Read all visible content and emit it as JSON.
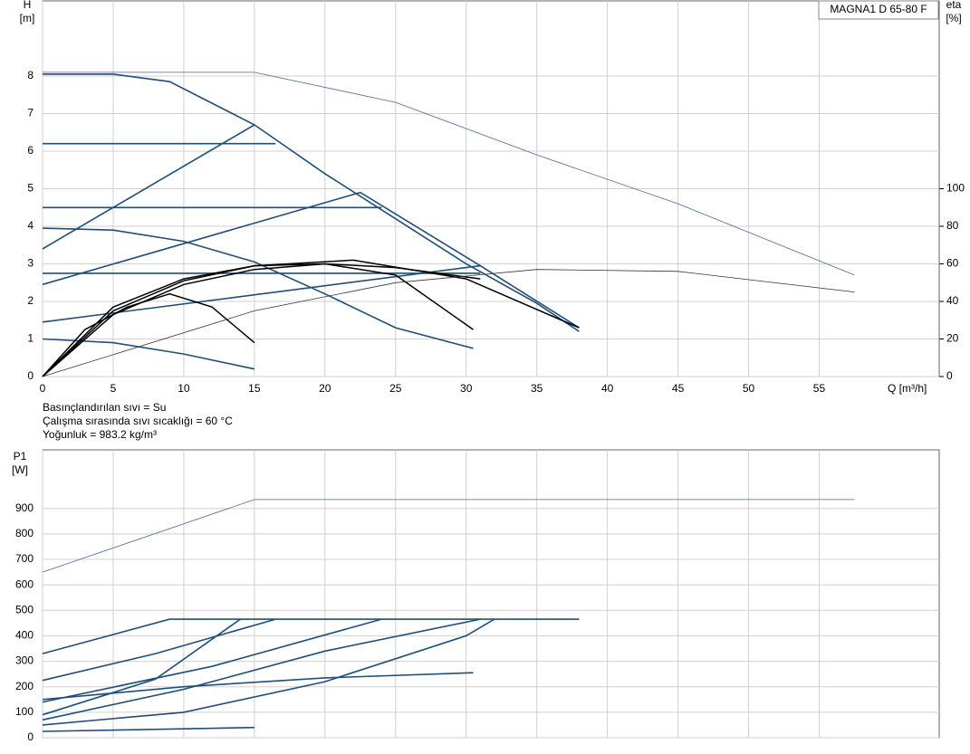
{
  "chart_data": [
    {
      "type": "line",
      "annotation": "MAGNA1 D 65-80 F",
      "y_label": "H",
      "y_unit": "[m]",
      "y2_label": "eta",
      "y2_unit": "[%]",
      "x_label": "Q [m³/h]",
      "notes": [
        "Basınçlandırılan sıvı = Su",
        "Çalışma sırasında sıvı sıcaklığı = 60 °C",
        "Yoğunluk = 983.2 kg/m³"
      ],
      "xlim": [
        0,
        63.5
      ],
      "ylim": [
        0,
        10
      ],
      "y2lim": [
        0,
        200
      ],
      "xticks": [
        0,
        5,
        10,
        15,
        20,
        25,
        30,
        35,
        40,
        45,
        50,
        55
      ],
      "yticks": [
        0,
        1,
        2,
        3,
        4,
        5,
        6,
        7,
        8
      ],
      "y2ticks": [
        0,
        20,
        40,
        60,
        80,
        100
      ],
      "grid": true,
      "series": [
        {
          "color": "#1f4e79",
          "width": 1.6,
          "x": [
            0,
            5,
            9,
            15,
            20,
            25,
            30,
            35,
            38
          ],
          "values": [
            8.05,
            8.05,
            7.85,
            6.7,
            5.4,
            4.2,
            3.0,
            1.95,
            1.2
          ]
        },
        {
          "color": "#1f4e79",
          "width": 1.6,
          "x": [
            0,
            16.5
          ],
          "values": [
            6.2,
            6.2
          ]
        },
        {
          "color": "#1f4e79",
          "width": 1.6,
          "x": [
            0,
            24
          ],
          "values": [
            4.5,
            4.5
          ]
        },
        {
          "color": "#1f4e79",
          "width": 1.6,
          "x": [
            0,
            31
          ],
          "values": [
            2.75,
            2.75
          ]
        },
        {
          "color": "#1f4e79",
          "width": 1.6,
          "x": [
            0,
            15
          ],
          "values": [
            3.4,
            6.7
          ]
        },
        {
          "color": "#1f4e79",
          "width": 1.6,
          "x": [
            0,
            22.5,
            31,
            38
          ],
          "values": [
            2.45,
            4.9,
            2.95,
            1.3
          ]
        },
        {
          "color": "#1f4e79",
          "width": 1.6,
          "x": [
            0,
            31
          ],
          "values": [
            1.45,
            2.95
          ]
        },
        {
          "color": "#1f4e79",
          "width": 1.6,
          "x": [
            0,
            5,
            10,
            15,
            20,
            25,
            30.5
          ],
          "values": [
            3.95,
            3.9,
            3.6,
            3.05,
            2.2,
            1.3,
            0.75
          ]
        },
        {
          "color": "#1f4e79",
          "width": 1.6,
          "x": [
            0,
            5,
            10,
            15
          ],
          "values": [
            1.0,
            0.9,
            0.6,
            0.2
          ]
        },
        {
          "color": "#4a6a9a",
          "width": 0.8,
          "x": [
            0,
            15,
            25,
            35,
            45,
            57.5
          ],
          "values": [
            8.1,
            8.1,
            7.3,
            5.9,
            4.6,
            2.7
          ]
        },
        {
          "color": "#000000",
          "width": 1.5,
          "axis": "y2",
          "x": [
            0,
            3,
            6,
            9,
            12,
            15
          ],
          "values": [
            0,
            25,
            37,
            44,
            37,
            18
          ]
        },
        {
          "color": "#000000",
          "width": 1.5,
          "axis": "y2",
          "x": [
            0,
            5,
            10,
            15,
            20,
            25,
            30.5
          ],
          "values": [
            0,
            37,
            52,
            59,
            60,
            54,
            25
          ]
        },
        {
          "color": "#000000",
          "width": 1.5,
          "axis": "y2",
          "x": [
            0,
            5,
            10,
            15,
            22,
            30,
            38
          ],
          "values": [
            0,
            35,
            51,
            59,
            62,
            52,
            26
          ]
        },
        {
          "color": "#000000",
          "width": 1.5,
          "axis": "y2",
          "x": [
            0,
            5,
            10,
            15,
            20,
            25,
            31
          ],
          "values": [
            0,
            33,
            49,
            57,
            60,
            58,
            52
          ]
        },
        {
          "color": "#333333",
          "width": 0.8,
          "axis": "y2",
          "x": [
            0,
            15,
            25,
            35,
            45,
            57.5
          ],
          "values": [
            0,
            35,
            50,
            57,
            56,
            45
          ]
        }
      ]
    },
    {
      "type": "line",
      "y_label": "P1",
      "y_unit": "[W]",
      "xlim": [
        0,
        63.5
      ],
      "ylim": [
        0,
        1130
      ],
      "xgrid": [
        0,
        5,
        10,
        15,
        20,
        25,
        30,
        35,
        40,
        45,
        50,
        55
      ],
      "yticks": [
        0,
        100,
        200,
        300,
        400,
        500,
        600,
        700,
        800,
        900
      ],
      "grid": true,
      "series": [
        {
          "color": "#4a6a9a",
          "width": 0.8,
          "x": [
            0,
            15,
            57.5
          ],
          "values": [
            650,
            935,
            935
          ]
        },
        {
          "color": "#1f4e79",
          "width": 1.6,
          "x": [
            0,
            9,
            38
          ],
          "values": [
            330,
            465,
            465
          ]
        },
        {
          "color": "#1f4e79",
          "width": 1.6,
          "x": [
            0,
            8,
            16.5
          ],
          "values": [
            225,
            330,
            465
          ]
        },
        {
          "color": "#1f4e79",
          "width": 1.6,
          "x": [
            0,
            12,
            24
          ],
          "values": [
            140,
            280,
            465
          ]
        },
        {
          "color": "#1f4e79",
          "width": 1.6,
          "x": [
            0,
            8,
            14
          ],
          "values": [
            90,
            230,
            465
          ]
        },
        {
          "color": "#1f4e79",
          "width": 1.6,
          "x": [
            0,
            10,
            20,
            31
          ],
          "values": [
            70,
            190,
            340,
            465
          ]
        },
        {
          "color": "#1f4e79",
          "width": 1.6,
          "x": [
            0,
            10,
            20,
            30,
            32
          ],
          "values": [
            50,
            100,
            220,
            400,
            465
          ]
        },
        {
          "color": "#1f4e79",
          "width": 1.6,
          "x": [
            0,
            10,
            20,
            30.5
          ],
          "values": [
            150,
            200,
            235,
            255
          ]
        },
        {
          "color": "#1f4e79",
          "width": 1.6,
          "x": [
            0,
            10,
            15
          ],
          "values": [
            25,
            35,
            40
          ]
        }
      ]
    }
  ]
}
